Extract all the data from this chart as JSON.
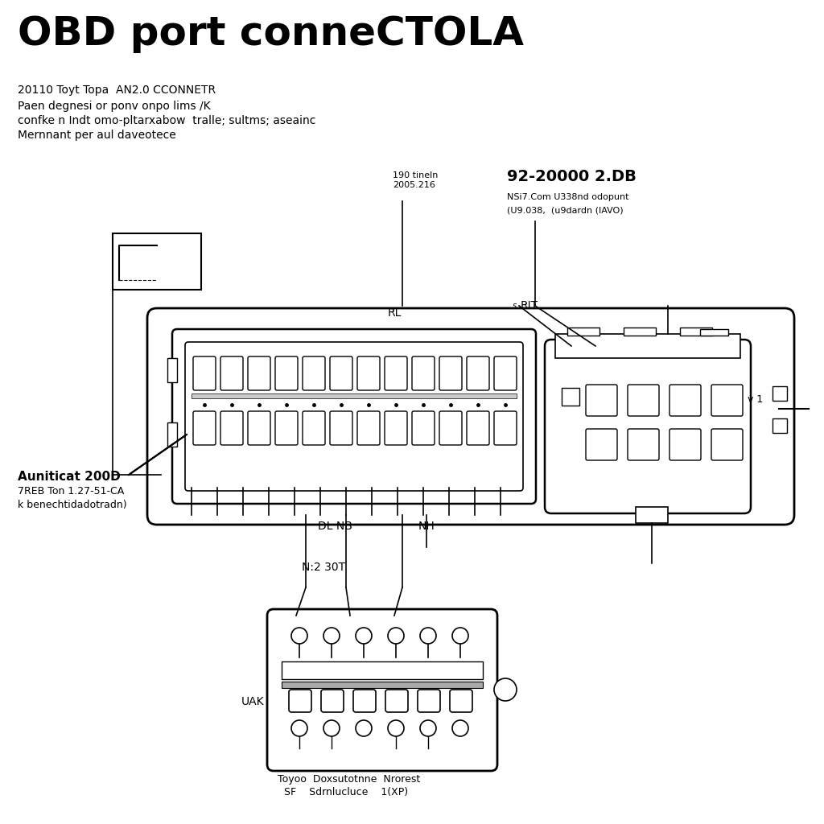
{
  "title": "OBD port conneCTOLA",
  "title_fontsize": 36,
  "title_fontweight": "bold",
  "subtitle1": "20110 Toyt Topa  AN2.0 CCONNETR",
  "subtitle2": "Paen degnesi or ponv onpo lims /K",
  "subtitle3": "confke n Indt omo-pltarxabow  tralle; sultms; aseainc",
  "subtitle4": "Mernnant per aul daveotece",
  "subtitle_fontsize": 11,
  "label_RL": "RL",
  "label_RIT": "RIT",
  "label_DL_NB": "DL NB",
  "label_NH": "NH",
  "label_UAK": "UAK",
  "label_N230T": "N:2 30T",
  "label_190": "190 tineln\n2005.216",
  "label_92": "92-20000 2.DB",
  "label_92_sub1": "NSi7.Com U338nd odopunt",
  "label_92_sub2": "(U9.038,  (u9dardn (IAVO)",
  "label_auniticat": "Auniticat 200D",
  "label_auniticat_sub1": "7REB Ton 1.27-51-CA",
  "label_auniticat_sub2": "k benechtidadotradn)",
  "label_bottom1": "Toyoo  Doxsutotnne  Nrorest",
  "label_bottom2": "  SF    Sdrnlucluce    1(XP)",
  "label_v1": "v 1",
  "bg_color": "#ffffff",
  "line_color": "#000000"
}
